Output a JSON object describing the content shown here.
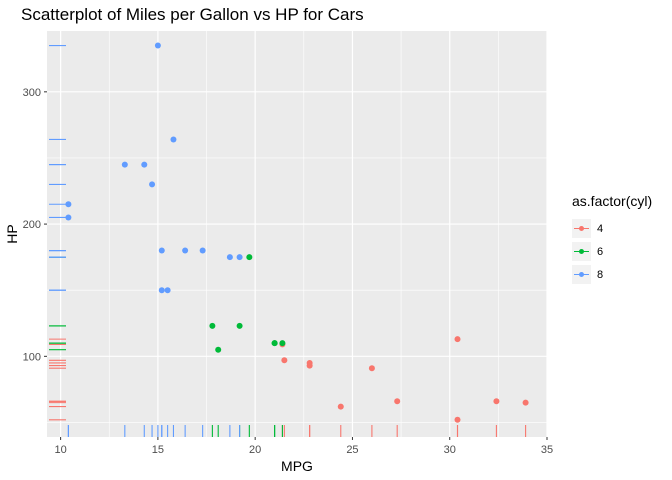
{
  "chart_data": {
    "type": "scatter",
    "title": "Scatterplot of Miles per Gallon vs HP for Cars",
    "xlabel": "MPG",
    "ylabel": "HP",
    "xlim": [
      9.3,
      35.0
    ],
    "ylim": [
      39,
      346
    ],
    "x_ticks": [
      10,
      15,
      20,
      25,
      30,
      35
    ],
    "y_ticks": [
      100,
      200,
      300
    ],
    "grid": true,
    "rug": true,
    "legend": {
      "title": "as.factor(cyl)",
      "position": "right",
      "entries": [
        {
          "label": "4",
          "color": "#F8766D"
        },
        {
          "label": "6",
          "color": "#00BA38"
        },
        {
          "label": "8",
          "color": "#619CFF"
        }
      ]
    },
    "series": [
      {
        "name": "4",
        "color": "#F8766D",
        "points": [
          [
            22.8,
            93
          ],
          [
            24.4,
            62
          ],
          [
            22.8,
            95
          ],
          [
            32.4,
            66
          ],
          [
            30.4,
            52
          ],
          [
            33.9,
            65
          ],
          [
            21.5,
            97
          ],
          [
            27.3,
            66
          ],
          [
            26.0,
            91
          ],
          [
            30.4,
            113
          ],
          [
            21.4,
            109
          ]
        ]
      },
      {
        "name": "6",
        "color": "#00BA38",
        "points": [
          [
            21.0,
            110
          ],
          [
            21.0,
            110
          ],
          [
            21.4,
            110
          ],
          [
            18.1,
            105
          ],
          [
            19.2,
            123
          ],
          [
            17.8,
            123
          ],
          [
            19.7,
            175
          ]
        ]
      },
      {
        "name": "8",
        "color": "#619CFF",
        "points": [
          [
            18.7,
            175
          ],
          [
            14.3,
            245
          ],
          [
            16.4,
            180
          ],
          [
            17.3,
            180
          ],
          [
            15.2,
            180
          ],
          [
            10.4,
            205
          ],
          [
            10.4,
            215
          ],
          [
            14.7,
            230
          ],
          [
            15.5,
            150
          ],
          [
            15.2,
            150
          ],
          [
            13.3,
            245
          ],
          [
            19.2,
            175
          ],
          [
            15.8,
            264
          ],
          [
            15.0,
            335
          ]
        ]
      }
    ]
  }
}
